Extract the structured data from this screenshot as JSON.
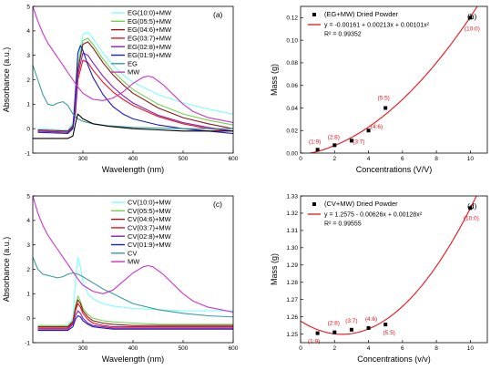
{
  "colors": {
    "lightcyan": "#7fffff",
    "lime": "#6cd650",
    "darkred": "#8b1a1a",
    "red": "#e8141b",
    "purple": "#8b1fb5",
    "navy": "#1b1bbf",
    "teal": "#3a9ca0",
    "magenta": "#cc33cc",
    "black": "#000000",
    "fit": "#e8141b"
  },
  "chart_data": [
    {
      "panel": "(a)",
      "type": "line",
      "xlabel": "Wavelength (nm)",
      "ylabel": "Absorbance (a.u.)",
      "xlim": [
        200,
        600
      ],
      "ylim": [
        -1,
        5
      ],
      "xticks": [
        300,
        400,
        500,
        600
      ],
      "yticks": [
        -1,
        0,
        1,
        2,
        3,
        4,
        5
      ],
      "legend_position": "top-center",
      "series": [
        {
          "name": "EG(10:0)+MW",
          "color": "lightcyan",
          "x": [
            210,
            270,
            280,
            285,
            290,
            300,
            310,
            320,
            340,
            360,
            380,
            400,
            450,
            500,
            550,
            600
          ],
          "y": [
            0,
            -0.05,
            0.2,
            1.0,
            2.8,
            3.85,
            3.95,
            3.7,
            3.1,
            2.6,
            2.2,
            1.9,
            1.4,
            1.05,
            0.8,
            0.6
          ]
        },
        {
          "name": "EG(05:5)+MW",
          "color": "lime",
          "x": [
            210,
            270,
            280,
            285,
            290,
            300,
            310,
            320,
            340,
            360,
            380,
            400,
            450,
            500,
            550,
            600
          ],
          "y": [
            -0.05,
            -0.1,
            0.15,
            0.9,
            2.6,
            3.6,
            3.7,
            3.45,
            2.85,
            2.35,
            1.95,
            1.6,
            1.0,
            0.6,
            0.35,
            0.15
          ]
        },
        {
          "name": "EG(04:6)+MW",
          "color": "darkred",
          "x": [
            210,
            270,
            280,
            285,
            290,
            300,
            310,
            320,
            340,
            360,
            380,
            400,
            450,
            500,
            550,
            600
          ],
          "y": [
            -0.05,
            -0.1,
            0.1,
            0.8,
            2.4,
            3.45,
            3.55,
            3.3,
            2.7,
            2.2,
            1.8,
            1.45,
            0.85,
            0.45,
            0.2,
            0.0
          ]
        },
        {
          "name": "EG(03:7)+MW",
          "color": "red",
          "x": [
            210,
            270,
            280,
            285,
            290,
            300,
            310,
            320,
            340,
            360,
            380,
            400,
            450,
            500,
            550,
            600
          ],
          "y": [
            -0.1,
            -0.15,
            0.05,
            0.6,
            2.0,
            2.8,
            2.7,
            2.4,
            1.9,
            1.5,
            1.2,
            0.95,
            0.5,
            0.2,
            0.0,
            -0.1
          ]
        },
        {
          "name": "EG(02:8)+MW",
          "color": "purple",
          "x": [
            210,
            270,
            280,
            285,
            290,
            300,
            310,
            320,
            340,
            360,
            380,
            400,
            450,
            500,
            550,
            600
          ],
          "y": [
            -0.1,
            -0.15,
            0.05,
            0.7,
            2.2,
            3.1,
            3.0,
            2.7,
            2.15,
            1.7,
            1.35,
            1.05,
            0.55,
            0.25,
            0.05,
            -0.1
          ]
        },
        {
          "name": "EG(01:9)+MW",
          "color": "navy",
          "x": [
            210,
            270,
            280,
            285,
            290,
            295,
            300,
            310,
            320,
            340,
            360,
            380,
            400,
            450,
            500,
            550,
            600
          ],
          "y": [
            -0.15,
            -0.2,
            0.0,
            1.5,
            3.1,
            3.4,
            3.2,
            2.6,
            2.1,
            1.4,
            0.9,
            0.6,
            0.4,
            0.15,
            0.0,
            -0.1,
            -0.2
          ]
        },
        {
          "name": "EG",
          "color": "teal",
          "x": [
            200,
            210,
            220,
            230,
            240,
            250,
            260,
            270,
            280,
            290,
            300,
            320,
            350,
            400,
            450,
            500,
            550,
            600
          ],
          "y": [
            2.6,
            2.0,
            1.4,
            1.0,
            0.95,
            1.05,
            1.1,
            0.95,
            0.6,
            0.4,
            0.3,
            0.2,
            0.12,
            0.05,
            0.02,
            0.0,
            0.0,
            0.0
          ]
        },
        {
          "name": "MW",
          "color": "magenta",
          "x": [
            200,
            210,
            220,
            230,
            240,
            250,
            260,
            270,
            280,
            290,
            300,
            320,
            340,
            360,
            380,
            400,
            420,
            430,
            440,
            460,
            480,
            500,
            520,
            550,
            600
          ],
          "y": [
            5.0,
            4.4,
            3.9,
            3.5,
            3.2,
            2.9,
            2.6,
            2.3,
            2.0,
            1.7,
            1.45,
            1.2,
            1.15,
            1.25,
            1.5,
            1.85,
            2.1,
            2.15,
            2.1,
            1.8,
            1.4,
            1.0,
            0.7,
            0.45,
            0.25
          ]
        },
        {
          "name": "",
          "color": "black",
          "x": [
            200,
            210,
            220,
            240,
            260,
            270,
            280,
            285,
            290,
            300,
            320,
            350,
            400,
            450,
            500,
            550,
            600
          ],
          "y": [
            -0.4,
            -0.4,
            -0.4,
            -0.4,
            -0.4,
            -0.4,
            -0.3,
            0.2,
            0.6,
            0.4,
            0.2,
            0.1,
            0.0,
            -0.05,
            -0.1,
            -0.1,
            -0.1
          ]
        }
      ]
    },
    {
      "panel": "(b)",
      "type": "scatter",
      "xlabel": "Concentrations (V/V)",
      "ylabel": "Mass (g)",
      "xlim": [
        0,
        11
      ],
      "ylim": [
        0.0,
        0.13
      ],
      "xticks": [
        0,
        2,
        4,
        6,
        8,
        10
      ],
      "yticks": [
        0.0,
        0.02,
        0.04,
        0.06,
        0.08,
        0.1,
        0.12
      ],
      "ytick_labels": [
        "0.00",
        "0.02",
        "0.04",
        "0.06",
        "0.08",
        "0.10",
        "0.12"
      ],
      "legend": {
        "marker_label": "(EG+MW) Dried Powder",
        "fit_label": "y = -0.00161 + 0.00213x + 0.00101x²",
        "r2_label": "R² = 0.99352"
      },
      "points": [
        {
          "x": 1,
          "y": 0.003,
          "label": "(1:9)"
        },
        {
          "x": 2,
          "y": 0.007,
          "label": "(2:8)"
        },
        {
          "x": 3,
          "y": 0.011,
          "label": "(3:7)"
        },
        {
          "x": 4,
          "y": 0.02,
          "label": "(4:6)"
        },
        {
          "x": 5,
          "y": 0.04,
          "label": "(5:5)"
        },
        {
          "x": 10,
          "y": 0.12,
          "label": "(10:0)"
        }
      ],
      "fit": {
        "a": -0.00161,
        "b": 0.00213,
        "c": 0.00101,
        "x_from": 0.5,
        "x_to": 10.9
      }
    },
    {
      "panel": "(c)",
      "type": "line",
      "xlabel": "Wavelength (nm)",
      "ylabel": "Absorbance (a.u.)",
      "xlim": [
        200,
        600
      ],
      "ylim": [
        -1,
        5
      ],
      "xticks": [
        300,
        400,
        500,
        600
      ],
      "yticks": [
        -1,
        0,
        1,
        2,
        3,
        4,
        5
      ],
      "legend_position": "top-center",
      "series": [
        {
          "name": "CV(10:0)+MW",
          "color": "lightcyan",
          "x": [
            210,
            270,
            280,
            285,
            290,
            295,
            300,
            310,
            320,
            340,
            360,
            380,
            400,
            450,
            500,
            550,
            600
          ],
          "y": [
            -0.3,
            -0.3,
            0.0,
            1.5,
            2.5,
            2.1,
            1.5,
            1.0,
            0.8,
            0.6,
            0.5,
            0.45,
            0.4,
            0.35,
            0.3,
            0.3,
            0.3
          ]
        },
        {
          "name": "CV(05:5)+MW",
          "color": "lime",
          "x": [
            210,
            270,
            280,
            285,
            290,
            295,
            300,
            310,
            320,
            340,
            360,
            400,
            450,
            500,
            550,
            600
          ],
          "y": [
            -0.3,
            -0.3,
            -0.1,
            0.5,
            0.9,
            0.7,
            0.4,
            0.15,
            0.0,
            -0.1,
            -0.15,
            -0.2,
            -0.25,
            -0.25,
            -0.25,
            -0.25
          ]
        },
        {
          "name": "CV(04:6)+MW",
          "color": "darkred",
          "x": [
            210,
            270,
            280,
            285,
            290,
            295,
            300,
            310,
            320,
            340,
            360,
            400,
            450,
            500,
            550,
            600
          ],
          "y": [
            -0.35,
            -0.35,
            -0.15,
            0.4,
            0.75,
            0.6,
            0.3,
            0.05,
            -0.1,
            -0.2,
            -0.25,
            -0.3,
            -0.3,
            -0.3,
            -0.3,
            -0.3
          ]
        },
        {
          "name": "CV(03:7)+MW",
          "color": "red",
          "x": [
            210,
            270,
            280,
            285,
            290,
            295,
            300,
            310,
            320,
            340,
            360,
            400,
            450,
            500,
            550,
            600
          ],
          "y": [
            -0.4,
            -0.4,
            -0.2,
            0.3,
            0.6,
            0.45,
            0.2,
            -0.05,
            -0.2,
            -0.3,
            -0.35,
            -0.35,
            -0.35,
            -0.35,
            -0.35,
            -0.35
          ]
        },
        {
          "name": "CV(02:8)+MW",
          "color": "purple",
          "x": [
            210,
            270,
            280,
            285,
            290,
            295,
            300,
            310,
            320,
            340,
            360,
            400,
            450,
            500,
            550,
            600
          ],
          "y": [
            -0.45,
            -0.45,
            -0.25,
            0.1,
            0.3,
            0.2,
            0.0,
            -0.2,
            -0.3,
            -0.35,
            -0.4,
            -0.4,
            -0.4,
            -0.4,
            -0.4,
            -0.4
          ]
        },
        {
          "name": "CV(01:9)+MW",
          "color": "navy",
          "x": [
            210,
            270,
            280,
            285,
            290,
            295,
            300,
            310,
            320,
            340,
            360,
            400,
            450,
            500,
            550,
            600
          ],
          "y": [
            -0.5,
            -0.5,
            -0.35,
            -0.05,
            0.1,
            0.05,
            -0.1,
            -0.25,
            -0.35,
            -0.4,
            -0.45,
            -0.45,
            -0.45,
            -0.45,
            -0.45,
            -0.45
          ]
        },
        {
          "name": "CV",
          "color": "teal",
          "x": [
            200,
            210,
            220,
            230,
            240,
            250,
            260,
            270,
            280,
            290,
            300,
            320,
            340,
            360,
            380,
            400,
            450,
            500,
            550,
            600
          ],
          "y": [
            2.5,
            2.0,
            1.8,
            1.75,
            1.7,
            1.65,
            1.7,
            1.8,
            1.85,
            1.8,
            1.7,
            1.45,
            1.2,
            1.0,
            0.8,
            0.6,
            0.35,
            0.2,
            0.1,
            0.05
          ]
        },
        {
          "name": "MW",
          "color": "magenta",
          "x": [
            200,
            210,
            220,
            230,
            240,
            250,
            260,
            270,
            280,
            290,
            300,
            320,
            340,
            360,
            380,
            400,
            420,
            430,
            440,
            460,
            480,
            500,
            520,
            550,
            600
          ],
          "y": [
            5.0,
            4.3,
            3.8,
            3.4,
            3.1,
            2.8,
            2.5,
            2.2,
            1.9,
            1.6,
            1.35,
            1.1,
            1.0,
            1.15,
            1.5,
            1.85,
            2.1,
            2.15,
            2.1,
            1.8,
            1.4,
            1.0,
            0.7,
            0.45,
            0.25
          ]
        }
      ]
    },
    {
      "panel": "(d)",
      "type": "scatter",
      "xlabel": "Concentrations (v/v)",
      "ylabel": "Mass (g)",
      "xlim": [
        0,
        11
      ],
      "ylim": [
        1.245,
        1.33
      ],
      "xticks": [
        0,
        2,
        4,
        6,
        8,
        10
      ],
      "yticks": [
        1.25,
        1.26,
        1.27,
        1.28,
        1.29,
        1.3,
        1.31,
        1.32,
        1.33
      ],
      "ytick_labels": [
        "1.25",
        "1.26",
        "1.27",
        "1.28",
        "1.29",
        "1.30",
        "1.31",
        "1.32",
        "1.33"
      ],
      "legend": {
        "marker_label": "(CV+MW) Dried Powder",
        "fit_label": "y = 1.2575 - 0.00626x + 0.00128x²",
        "r2_label": "R² = 0.99555"
      },
      "points": [
        {
          "x": 1,
          "y": 1.2505,
          "label": "(1:9)"
        },
        {
          "x": 2,
          "y": 1.251,
          "label": "(2:8)"
        },
        {
          "x": 3,
          "y": 1.2525,
          "label": "(3:7)"
        },
        {
          "x": 4,
          "y": 1.2535,
          "label": "(4:6)"
        },
        {
          "x": 5,
          "y": 1.2555,
          "label": "(5:5)"
        },
        {
          "x": 10,
          "y": 1.323,
          "label": "(10:0)"
        }
      ],
      "fit": {
        "a": 1.2575,
        "b": -0.00626,
        "c": 0.00128,
        "x_from": 0.0,
        "x_to": 11.0
      }
    }
  ]
}
